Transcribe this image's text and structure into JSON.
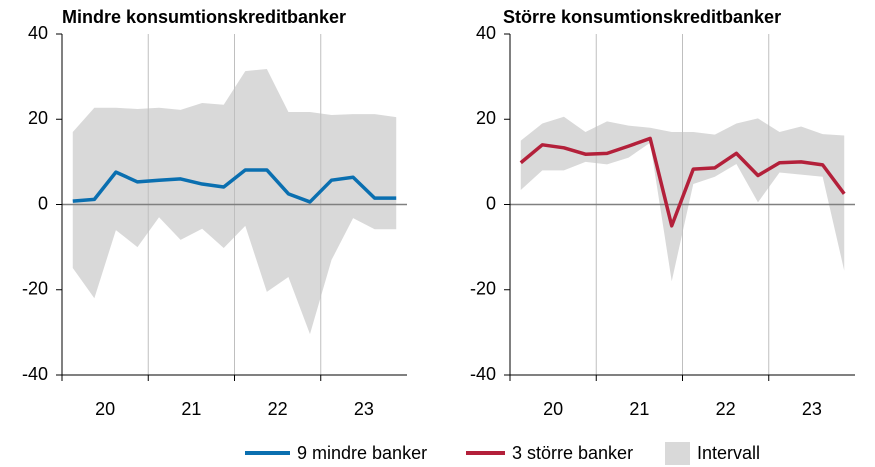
{
  "chart_data": [
    {
      "type": "line",
      "title": "Mindre konsumtionskreditbanker",
      "categories": [
        null,
        null,
        null,
        null,
        null,
        null,
        null,
        null,
        null,
        null,
        null,
        null,
        null,
        null,
        null,
        null
      ],
      "year_labels": [
        "20",
        "21",
        "22",
        "23"
      ],
      "series": [
        {
          "name": "9 mindre banker",
          "color": "#0a6fb0",
          "values": [
            0.8,
            1.2,
            7.6,
            5.3,
            5.7,
            6.0,
            4.8,
            4.1,
            8.1,
            8.1,
            2.5,
            0.6,
            5.7,
            6.4,
            1.5,
            1.5
          ]
        }
      ],
      "band": {
        "name": "Intervall",
        "color": "#d9d9d9",
        "upper": [
          17,
          22.7,
          22.7,
          22.4,
          22.7,
          22.2,
          23.8,
          23.4,
          31.3,
          31.8,
          21.7,
          21.7,
          21,
          21.2,
          21.2,
          20.5
        ],
        "lower": [
          -14.9,
          -22,
          -6,
          -10,
          -3,
          -8.3,
          -5.7,
          -10.2,
          -5,
          -20.5,
          -17,
          -30.4,
          -13,
          -3.2,
          -5.8,
          -5.8
        ]
      },
      "ylim": [
        -40,
        40
      ],
      "yticks": [
        40,
        20,
        0,
        -20,
        -40
      ]
    },
    {
      "type": "line",
      "title": "Större konsumtionskreditbanker",
      "categories": [
        null,
        null,
        null,
        null,
        null,
        null,
        null,
        null,
        null,
        null,
        null,
        null,
        null,
        null,
        null,
        null
      ],
      "year_labels": [
        "20",
        "21",
        "22",
        "23"
      ],
      "series": [
        {
          "name": "3 större banker",
          "color": "#b3203a",
          "values": [
            9.8,
            14,
            13.3,
            11.8,
            12,
            13.7,
            15.5,
            -5,
            8.3,
            8.6,
            12,
            6.8,
            9.8,
            10,
            9.3,
            2.5
          ]
        }
      ],
      "band": {
        "color": "#d9d9d9",
        "upper": [
          15,
          19,
          20.6,
          17,
          19.5,
          18.5,
          18,
          17,
          17,
          16.4,
          19,
          20.2,
          17,
          18.3,
          16.5,
          16.2
        ],
        "lower": [
          3.4,
          8,
          8,
          10,
          9.4,
          11,
          14.5,
          -18,
          4.8,
          6.5,
          9.5,
          0.5,
          7.5,
          7,
          6.5,
          -15.5
        ]
      },
      "ylim": [
        -40,
        40
      ],
      "yticks": [
        40,
        20,
        0,
        -20,
        -40
      ]
    }
  ]
}
